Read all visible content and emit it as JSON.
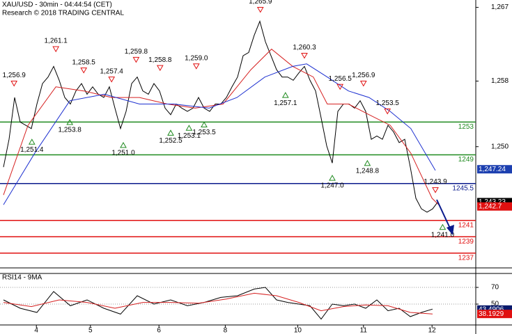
{
  "chart_data": [
    {
      "type": "line",
      "title": "XAU/USD - 30min - 04:44:54 (CET)",
      "subtitle": "Research © 2018 TRADING CENTRAL",
      "xlim": [
        -0.625,
        84.75
      ],
      "ylim": [
        1235.2,
        1267.9
      ],
      "yticks": [
        {
          "value": 1267,
          "label": "1,267"
        },
        {
          "value": 1258,
          "label": "1,258"
        },
        {
          "value": 1250,
          "label": "1,250"
        }
      ],
      "x": [
        0,
        1,
        2,
        3,
        4,
        5,
        6,
        7,
        8,
        9,
        10,
        11,
        12,
        13,
        14,
        15,
        16,
        17,
        18,
        19,
        20,
        21,
        22,
        23,
        24,
        25,
        26,
        27,
        28,
        29,
        30,
        31,
        32,
        33,
        34,
        35,
        36,
        37,
        38,
        39,
        40,
        41,
        42,
        43,
        44,
        45,
        46,
        47,
        48,
        49,
        50,
        51,
        52,
        53,
        54,
        55,
        56,
        57,
        58,
        59,
        60,
        61,
        62,
        63,
        64,
        65,
        66,
        67,
        68,
        69,
        70,
        71,
        72,
        73,
        74,
        75,
        76,
        77,
        78
      ],
      "series": [
        {
          "color": "#000000",
          "values": [
            1247.5,
            1250.9,
            1256.0,
            1253.0,
            1252.6,
            1252.2,
            1255.2,
            1257.7,
            1258.5,
            1259.8,
            1258.1,
            1256.0,
            1255.2,
            1256.8,
            1257.7,
            1256.4,
            1257.3,
            1256.4,
            1256.0,
            1257.3,
            1254.7,
            1252.2,
            1254.3,
            1257.7,
            1258.5,
            1256.8,
            1256.4,
            1257.7,
            1256.8,
            1254.7,
            1253.9,
            1255.2,
            1254.7,
            1254.3,
            1254.7,
            1256.0,
            1254.7,
            1254.3,
            1255.2,
            1255.2,
            1256.0,
            1257.3,
            1258.5,
            1261.1,
            1261.5,
            1263.6,
            1265.3,
            1262.8,
            1261.1,
            1259.4,
            1258.5,
            1258.5,
            1258.1,
            1259.0,
            1259.8,
            1258.1,
            1256.8,
            1253.5,
            1250.1,
            1248.0,
            1254.3,
            1255.2,
            1255.2,
            1254.7,
            1255.6,
            1254.3,
            1250.9,
            1251.3,
            1250.9,
            1252.6,
            1251.8,
            1250.5,
            1250.9,
            1247.5,
            1243.7,
            1242.4,
            1242.0,
            1242.4,
            1243.3
          ]
        },
        {
          "color": "#d62020",
          "x": [
            0,
            4.4,
            9.4,
            14.4,
            19.4,
            24.4,
            29.4,
            34.4,
            39.4,
            44.4,
            48.1,
            51.9,
            55.6,
            58.1,
            61.9,
            65.6,
            69.4,
            73.1,
            76.9,
            78.1
          ],
          "values": [
            1244.1,
            1252.6,
            1257.3,
            1256.8,
            1256.0,
            1256.0,
            1255.2,
            1254.7,
            1255.2,
            1259.4,
            1261.9,
            1259.8,
            1258.5,
            1255.2,
            1255.2,
            1253.9,
            1252.6,
            1249.2,
            1243.7,
            1242.9
          ]
        },
        {
          "color": "#1c2fd0",
          "x": [
            0,
            5.6,
            11.9,
            18.1,
            24.4,
            30.6,
            36.9,
            41.9,
            46.9,
            51.9,
            54.4,
            58.1,
            61.9,
            65.6,
            69.4,
            73.1,
            77.5
          ],
          "values": [
            1242.9,
            1249.2,
            1255.6,
            1256.4,
            1255.2,
            1255.2,
            1254.7,
            1256.0,
            1258.5,
            1259.8,
            1260.1,
            1258.5,
            1256.8,
            1256.0,
            1254.3,
            1252.2,
            1247.1
          ]
        }
      ],
      "levels": [
        {
          "value": 1253,
          "color": "#1f8a1f"
        },
        {
          "value": 1249,
          "color": "#1f8a1f"
        },
        {
          "value": 1245.5,
          "color": "#0a1a8c"
        },
        {
          "value": 1241,
          "color": "#e01010"
        },
        {
          "value": 1239,
          "color": "#e01010"
        },
        {
          "value": 1237,
          "color": "#e01010"
        }
      ],
      "annotations": [
        {
          "label": "1,256.9",
          "value": 1256.9,
          "x": 1.9,
          "kind": "high"
        },
        {
          "label": "1,261.1",
          "value": 1261.1,
          "x": 9.4,
          "kind": "high"
        },
        {
          "label": "1,258.5",
          "value": 1258.5,
          "x": 14.4,
          "kind": "high"
        },
        {
          "label": "1,257.4",
          "value": 1257.4,
          "x": 19.4,
          "kind": "high"
        },
        {
          "label": "1,259.8",
          "value": 1259.8,
          "x": 23.8,
          "kind": "high"
        },
        {
          "label": "1,258.8",
          "value": 1258.8,
          "x": 28.1,
          "kind": "high"
        },
        {
          "label": "1,259.0",
          "value": 1259.0,
          "x": 34.6,
          "kind": "high"
        },
        {
          "label": "1,265.9",
          "value": 1265.9,
          "x": 46.1,
          "kind": "high"
        },
        {
          "label": "1,260.3",
          "value": 1260.3,
          "x": 54.0,
          "kind": "high"
        },
        {
          "label": "1,256.5",
          "value": 1256.5,
          "x": 60.4,
          "kind": "high"
        },
        {
          "label": "1,256.9",
          "value": 1256.9,
          "x": 64.6,
          "kind": "high"
        },
        {
          "label": "1,253.5",
          "value": 1253.5,
          "x": 68.9,
          "kind": "high"
        },
        {
          "label": "1,243.9",
          "value": 1243.9,
          "x": 77.5,
          "kind": "high"
        },
        {
          "label": "1,251.4",
          "value": 1251.4,
          "x": 5.1,
          "kind": "low"
        },
        {
          "label": "1,253.8",
          "value": 1253.8,
          "x": 11.9,
          "kind": "low"
        },
        {
          "label": "1,251.0",
          "value": 1251.0,
          "x": 21.5,
          "kind": "low"
        },
        {
          "label": "1,252.5",
          "value": 1252.5,
          "x": 30.0,
          "kind": "low"
        },
        {
          "label": "1,253.1",
          "value": 1253.1,
          "x": 33.3,
          "kind": "low"
        },
        {
          "label": "1,253.5",
          "value": 1253.5,
          "x": 36.0,
          "kind": "low"
        },
        {
          "label": "1,257.1",
          "value": 1257.1,
          "x": 50.6,
          "kind": "low"
        },
        {
          "label": "1,247.0",
          "value": 1247.0,
          "x": 59.0,
          "kind": "low"
        },
        {
          "label": "1,248.8",
          "value": 1248.8,
          "x": 65.3,
          "kind": "low"
        },
        {
          "label": "1,241.0",
          "value": 1241.0,
          "x": 78.8,
          "kind": "low"
        }
      ],
      "price_labels": [
        {
          "value": 1247.24,
          "label": "1,247.24",
          "color": "#1c3fb0"
        },
        {
          "value": 1243.23,
          "label": "1,243.23",
          "color": "#000000"
        },
        {
          "value": 1242.7,
          "label": "1,242.7",
          "color": "#e01010"
        }
      ]
    },
    {
      "type": "line",
      "title": "RSI14 - 9MA",
      "xlim": [
        -0.625,
        84.75
      ],
      "ylim": [
        25,
        86.7
      ],
      "yticks": [
        50,
        70
      ],
      "xticks": [
        {
          "value": 5.9,
          "label": "4"
        },
        {
          "value": 15.6,
          "label": "5"
        },
        {
          "value": 27.9,
          "label": "6"
        },
        {
          "value": 39.8,
          "label": "8"
        },
        {
          "value": 52.8,
          "label": "10"
        },
        {
          "value": 64.6,
          "label": "11"
        },
        {
          "value": 76.9,
          "label": "12"
        }
      ],
      "series": [
        {
          "color": "#000000",
          "x": [
            0,
            3,
            6,
            9,
            12,
            15,
            18,
            21,
            24,
            27,
            30,
            33,
            36,
            39,
            42,
            45,
            47,
            49,
            51,
            53,
            55,
            57,
            59,
            61,
            63,
            65,
            67,
            69,
            71,
            73,
            75,
            77
          ],
          "values": [
            55,
            45,
            40,
            65,
            48,
            55,
            45,
            38,
            60,
            50,
            55,
            48,
            52,
            58,
            60,
            68,
            70,
            55,
            52,
            50,
            48,
            32,
            50,
            48,
            50,
            45,
            55,
            42,
            45,
            35,
            40,
            44
          ]
        },
        {
          "color": "#d62020",
          "x": [
            0,
            5,
            10,
            15,
            20,
            25,
            30,
            35,
            40,
            45,
            49,
            53,
            57,
            61,
            65,
            69,
            73,
            77
          ],
          "values": [
            52,
            47,
            55,
            52,
            45,
            52,
            52,
            51,
            56,
            63,
            60,
            52,
            42,
            47,
            49,
            48,
            40,
            38.2
          ]
        }
      ],
      "price_labels": [
        {
          "value": 43.4906,
          "label": "43.4906",
          "color": "#0a1a6c"
        },
        {
          "value": 38.1929,
          "label": "38.1929",
          "color": "#e01010"
        }
      ]
    }
  ]
}
